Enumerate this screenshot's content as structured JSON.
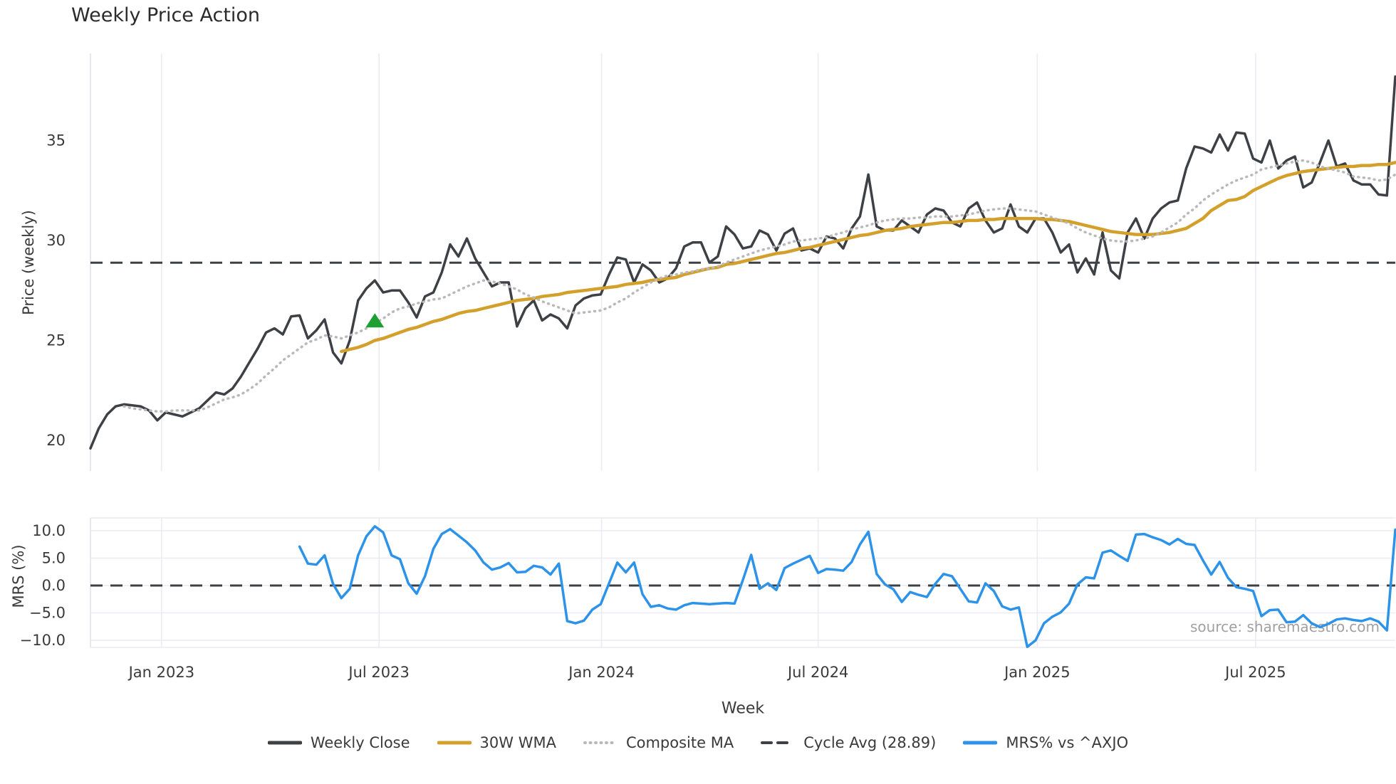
{
  "title": "Weekly Price Action",
  "source_text": "source: sharemaestro.com",
  "colors": {
    "close": "#3d4045",
    "wma": "#d4a02c",
    "composite": "#b9b9b9",
    "cycle_avg": "#3d4045",
    "mrs": "#2d93e8",
    "signal": "#1f9e34",
    "grid": "#e9ecf4",
    "spine": "#dddfe6",
    "tick_text": "#3a3a3a",
    "source_text": "#a0a0a0"
  },
  "chart_data": {
    "type": "line",
    "title": "Weekly Price Action",
    "xlabel": "Week",
    "x_unit": "week-index",
    "n_weeks": 157,
    "xticks": [
      {
        "label": "Jan 2023",
        "week": 8.5
      },
      {
        "label": "Jul 2023",
        "week": 34.5
      },
      {
        "label": "Jan 2024",
        "week": 61.1
      },
      {
        "label": "Jul 2024",
        "week": 87.0
      },
      {
        "label": "Jan 2025",
        "week": 113.2
      },
      {
        "label": "Jul 2025",
        "week": 139.3
      }
    ],
    "panels": [
      {
        "id": "price",
        "ylabel": "Price (weekly)",
        "ylim": [
          18.5,
          39.35
        ],
        "yticks": [
          {
            "label": "35",
            "value": 35
          },
          {
            "label": "30",
            "value": 30
          },
          {
            "label": "25",
            "value": 25
          },
          {
            "label": "20",
            "value": 20
          }
        ],
        "grid": "vertical",
        "hlines": [
          {
            "name": "Cycle Avg (28.89)",
            "value": 28.89,
            "style": "dashed",
            "color_key": "cycle_avg"
          }
        ],
        "markers": [
          {
            "name": "buy-signal",
            "shape": "triangle-up",
            "week": 34,
            "value": 25.9,
            "color_key": "signal"
          }
        ],
        "series": [
          {
            "name": "Weekly Close",
            "color_key": "close",
            "style": "solid",
            "width": 3.5,
            "values": [
              19.6,
              20.6,
              21.3,
              21.7,
              21.8,
              21.75,
              21.7,
              21.5,
              21.0,
              21.4,
              21.3,
              21.2,
              21.4,
              21.6,
              22.0,
              22.4,
              22.3,
              22.6,
              23.2,
              23.9,
              24.6,
              25.4,
              25.6,
              25.3,
              26.2,
              26.25,
              25.1,
              25.5,
              26.05,
              24.4,
              23.85,
              25.0,
              27.0,
              27.6,
              28.0,
              27.4,
              27.5,
              27.5,
              26.9,
              26.15,
              27.2,
              27.4,
              28.4,
              29.8,
              29.2,
              30.1,
              29.1,
              28.4,
              27.7,
              27.9,
              27.9,
              25.7,
              26.6,
              27.0,
              26.0,
              26.3,
              26.1,
              25.6,
              26.75,
              27.1,
              27.25,
              27.3,
              28.3,
              29.15,
              29.05,
              27.9,
              28.8,
              28.5,
              27.9,
              28.1,
              28.6,
              29.7,
              29.9,
              29.9,
              28.9,
              29.2,
              30.7,
              30.3,
              29.6,
              29.7,
              30.5,
              30.3,
              29.5,
              30.35,
              30.6,
              29.5,
              29.6,
              29.4,
              30.2,
              30.1,
              29.6,
              30.6,
              31.2,
              33.3,
              30.7,
              30.5,
              30.5,
              31.0,
              30.7,
              30.4,
              31.3,
              31.6,
              31.5,
              30.9,
              30.7,
              31.6,
              31.9,
              31.0,
              30.4,
              30.6,
              31.8,
              30.7,
              30.4,
              31.1,
              31.1,
              30.4,
              29.4,
              29.8,
              28.4,
              29.1,
              28.3,
              30.4,
              28.5,
              28.1,
              30.4,
              31.1,
              30.1,
              31.1,
              31.6,
              31.9,
              32.0,
              33.6,
              34.7,
              34.6,
              34.4,
              35.3,
              34.5,
              35.4,
              35.35,
              34.1,
              33.9,
              35.0,
              33.6,
              34.0,
              34.2,
              32.65,
              32.9,
              33.9,
              35.0,
              33.7,
              33.85,
              33.0,
              32.8,
              32.8,
              32.3,
              32.25,
              38.2
            ]
          },
          {
            "name": "30W WMA",
            "color_key": "wma",
            "style": "solid",
            "width": 4.5,
            "values": [
              null,
              null,
              null,
              null,
              null,
              null,
              null,
              null,
              null,
              null,
              null,
              null,
              null,
              null,
              null,
              null,
              null,
              null,
              null,
              null,
              null,
              null,
              null,
              null,
              null,
              null,
              null,
              null,
              null,
              null,
              24.45,
              24.55,
              24.65,
              24.8,
              25.0,
              25.1,
              25.25,
              25.4,
              25.55,
              25.65,
              25.8,
              25.95,
              26.05,
              26.2,
              26.35,
              26.45,
              26.5,
              26.6,
              26.7,
              26.8,
              26.9,
              27.0,
              27.05,
              27.1,
              27.2,
              27.25,
              27.3,
              27.4,
              27.45,
              27.5,
              27.55,
              27.6,
              27.65,
              27.7,
              27.8,
              27.85,
              27.9,
              28.0,
              28.05,
              28.1,
              28.15,
              28.3,
              28.4,
              28.5,
              28.6,
              28.65,
              28.8,
              28.85,
              28.95,
              29.05,
              29.15,
              29.25,
              29.35,
              29.4,
              29.5,
              29.6,
              29.65,
              29.75,
              29.85,
              29.95,
              30.05,
              30.15,
              30.25,
              30.3,
              30.4,
              30.5,
              30.55,
              30.6,
              30.7,
              30.75,
              30.8,
              30.85,
              30.9,
              30.9,
              30.95,
              31.0,
              31.0,
              31.05,
              31.05,
              31.1,
              31.1,
              31.1,
              31.1,
              31.1,
              31.05,
              31.05,
              31.0,
              30.95,
              30.85,
              30.75,
              30.65,
              30.55,
              30.45,
              30.4,
              30.35,
              30.3,
              30.3,
              30.3,
              30.35,
              30.4,
              30.5,
              30.6,
              30.85,
              31.1,
              31.5,
              31.75,
              32.0,
              32.05,
              32.2,
              32.5,
              32.7,
              32.9,
              33.1,
              33.25,
              33.35,
              33.45,
              33.5,
              33.55,
              33.6,
              33.65,
              33.7,
              33.7,
              33.75,
              33.75,
              33.8,
              33.8,
              33.9
            ]
          },
          {
            "name": "Composite MA",
            "color_key": "composite",
            "style": "dotted",
            "width": 3.5,
            "values": [
              null,
              null,
              null,
              null,
              21.7,
              21.6,
              21.55,
              21.5,
              21.45,
              21.45,
              21.5,
              21.5,
              21.5,
              21.5,
              21.65,
              21.85,
              22.05,
              22.15,
              22.3,
              22.55,
              22.85,
              23.25,
              23.6,
              24.0,
              24.3,
              24.6,
              24.9,
              25.05,
              25.25,
              25.2,
              25.1,
              25.25,
              25.4,
              25.6,
              25.85,
              26.1,
              26.4,
              26.6,
              26.7,
              26.85,
              26.95,
              27.05,
              27.1,
              27.3,
              27.5,
              27.7,
              27.85,
              28.0,
              27.95,
              27.85,
              27.7,
              27.55,
              27.3,
              27.15,
              26.95,
              26.8,
              26.65,
              26.5,
              26.35,
              26.4,
              26.45,
              26.5,
              26.65,
              26.9,
              27.1,
              27.4,
              27.65,
              27.9,
              28.1,
              28.25,
              28.3,
              28.4,
              28.45,
              28.55,
              28.6,
              28.7,
              28.9,
              29.05,
              29.2,
              29.35,
              29.5,
              29.6,
              29.7,
              29.8,
              29.95,
              30.0,
              30.05,
              30.1,
              30.15,
              30.3,
              30.4,
              30.55,
              30.65,
              30.75,
              30.9,
              31.0,
              31.05,
              31.1,
              31.1,
              31.15,
              31.15,
              31.2,
              31.2,
              31.2,
              31.25,
              31.3,
              31.4,
              31.5,
              31.55,
              31.6,
              31.6,
              31.55,
              31.5,
              31.45,
              31.3,
              31.15,
              31.0,
              30.85,
              30.6,
              30.4,
              30.25,
              30.1,
              30.0,
              29.95,
              29.95,
              30.0,
              30.1,
              30.2,
              30.4,
              30.65,
              30.9,
              31.3,
              31.6,
              32.0,
              32.3,
              32.55,
              32.8,
              33.0,
              33.15,
              33.3,
              33.55,
              33.65,
              33.75,
              33.85,
              33.95,
              34.0,
              33.9,
              33.7,
              33.6,
              33.5,
              33.4,
              33.2,
              33.15,
              33.1,
              33.0,
              33.05,
              33.3
            ]
          }
        ]
      },
      {
        "id": "mrs",
        "ylabel": "MRS (%)",
        "ylim": [
          -11.6,
          12.3
        ],
        "yticks": [
          {
            "label": "10.0",
            "value": 10
          },
          {
            "label": "5.0",
            "value": 5
          },
          {
            "label": "0.0",
            "value": 0
          },
          {
            "label": "−5.0",
            "value": -5
          },
          {
            "label": "−10.0",
            "value": -10
          }
        ],
        "grid": "both",
        "hlines": [
          {
            "name": "zero-line",
            "value": 0,
            "style": "dashed",
            "color_key": "cycle_avg"
          }
        ],
        "markers": [],
        "series": [
          {
            "name": "MRS% vs ^AXJO",
            "color_key": "mrs",
            "style": "solid",
            "width": 3.5,
            "values": [
              null,
              null,
              null,
              null,
              null,
              null,
              null,
              null,
              null,
              null,
              null,
              null,
              null,
              null,
              null,
              null,
              null,
              null,
              null,
              null,
              null,
              null,
              null,
              null,
              null,
              7.1,
              4.0,
              3.8,
              5.5,
              0.3,
              -2.3,
              -0.6,
              5.5,
              9.0,
              10.8,
              9.7,
              5.5,
              4.8,
              0.4,
              -1.5,
              1.7,
              6.7,
              9.4,
              10.3,
              9.1,
              7.9,
              6.4,
              4.2,
              2.9,
              3.3,
              4.1,
              2.4,
              2.5,
              3.6,
              3.3,
              2.0,
              4.0,
              -6.5,
              -6.9,
              -6.4,
              -4.4,
              -3.4,
              0.4,
              4.2,
              2.4,
              4.2,
              -1.6,
              -3.9,
              -3.6,
              -4.2,
              -4.4,
              -3.6,
              -3.2,
              -3.3,
              -3.4,
              -3.3,
              -3.2,
              -3.3,
              1.0,
              5.6,
              -0.6,
              0.4,
              -0.8,
              3.2,
              4.0,
              4.7,
              5.4,
              2.3,
              3.0,
              2.9,
              2.7,
              4.3,
              7.5,
              9.8,
              2.1,
              0.2,
              -0.7,
              -3.0,
              -1.2,
              -1.7,
              -2.1,
              0.3,
              2.1,
              1.7,
              -0.6,
              -2.9,
              -3.1,
              0.4,
              -1.0,
              -3.8,
              -4.4,
              -4.0,
              -11.2,
              -10.0,
              -6.9,
              -5.7,
              -4.9,
              -3.3,
              0.2,
              1.5,
              1.3,
              6.0,
              6.4,
              5.4,
              4.5,
              9.3,
              9.4,
              8.8,
              8.3,
              7.5,
              8.5,
              7.6,
              7.4,
              4.6,
              2.0,
              4.3,
              1.4,
              -0.3,
              -0.6,
              -1.0,
              -5.6,
              -4.5,
              -4.4,
              -6.7,
              -6.6,
              -5.4,
              -6.9,
              -7.6,
              -7.0,
              -6.2,
              -6.0,
              -6.3,
              -6.5,
              -6.0,
              -6.6,
              -8.2,
              10.2
            ]
          }
        ]
      }
    ],
    "legend_position": "bottom-center",
    "legend": [
      {
        "label": "Weekly Close",
        "color_key": "close",
        "style": "solid"
      },
      {
        "label": "30W WMA",
        "color_key": "wma",
        "style": "solid"
      },
      {
        "label": "Composite MA",
        "color_key": "composite",
        "style": "dotted"
      },
      {
        "label": "Cycle Avg (28.89)",
        "color_key": "cycle_avg",
        "style": "dashed"
      },
      {
        "label": "MRS% vs ^AXJO",
        "color_key": "mrs",
        "style": "solid"
      }
    ]
  }
}
